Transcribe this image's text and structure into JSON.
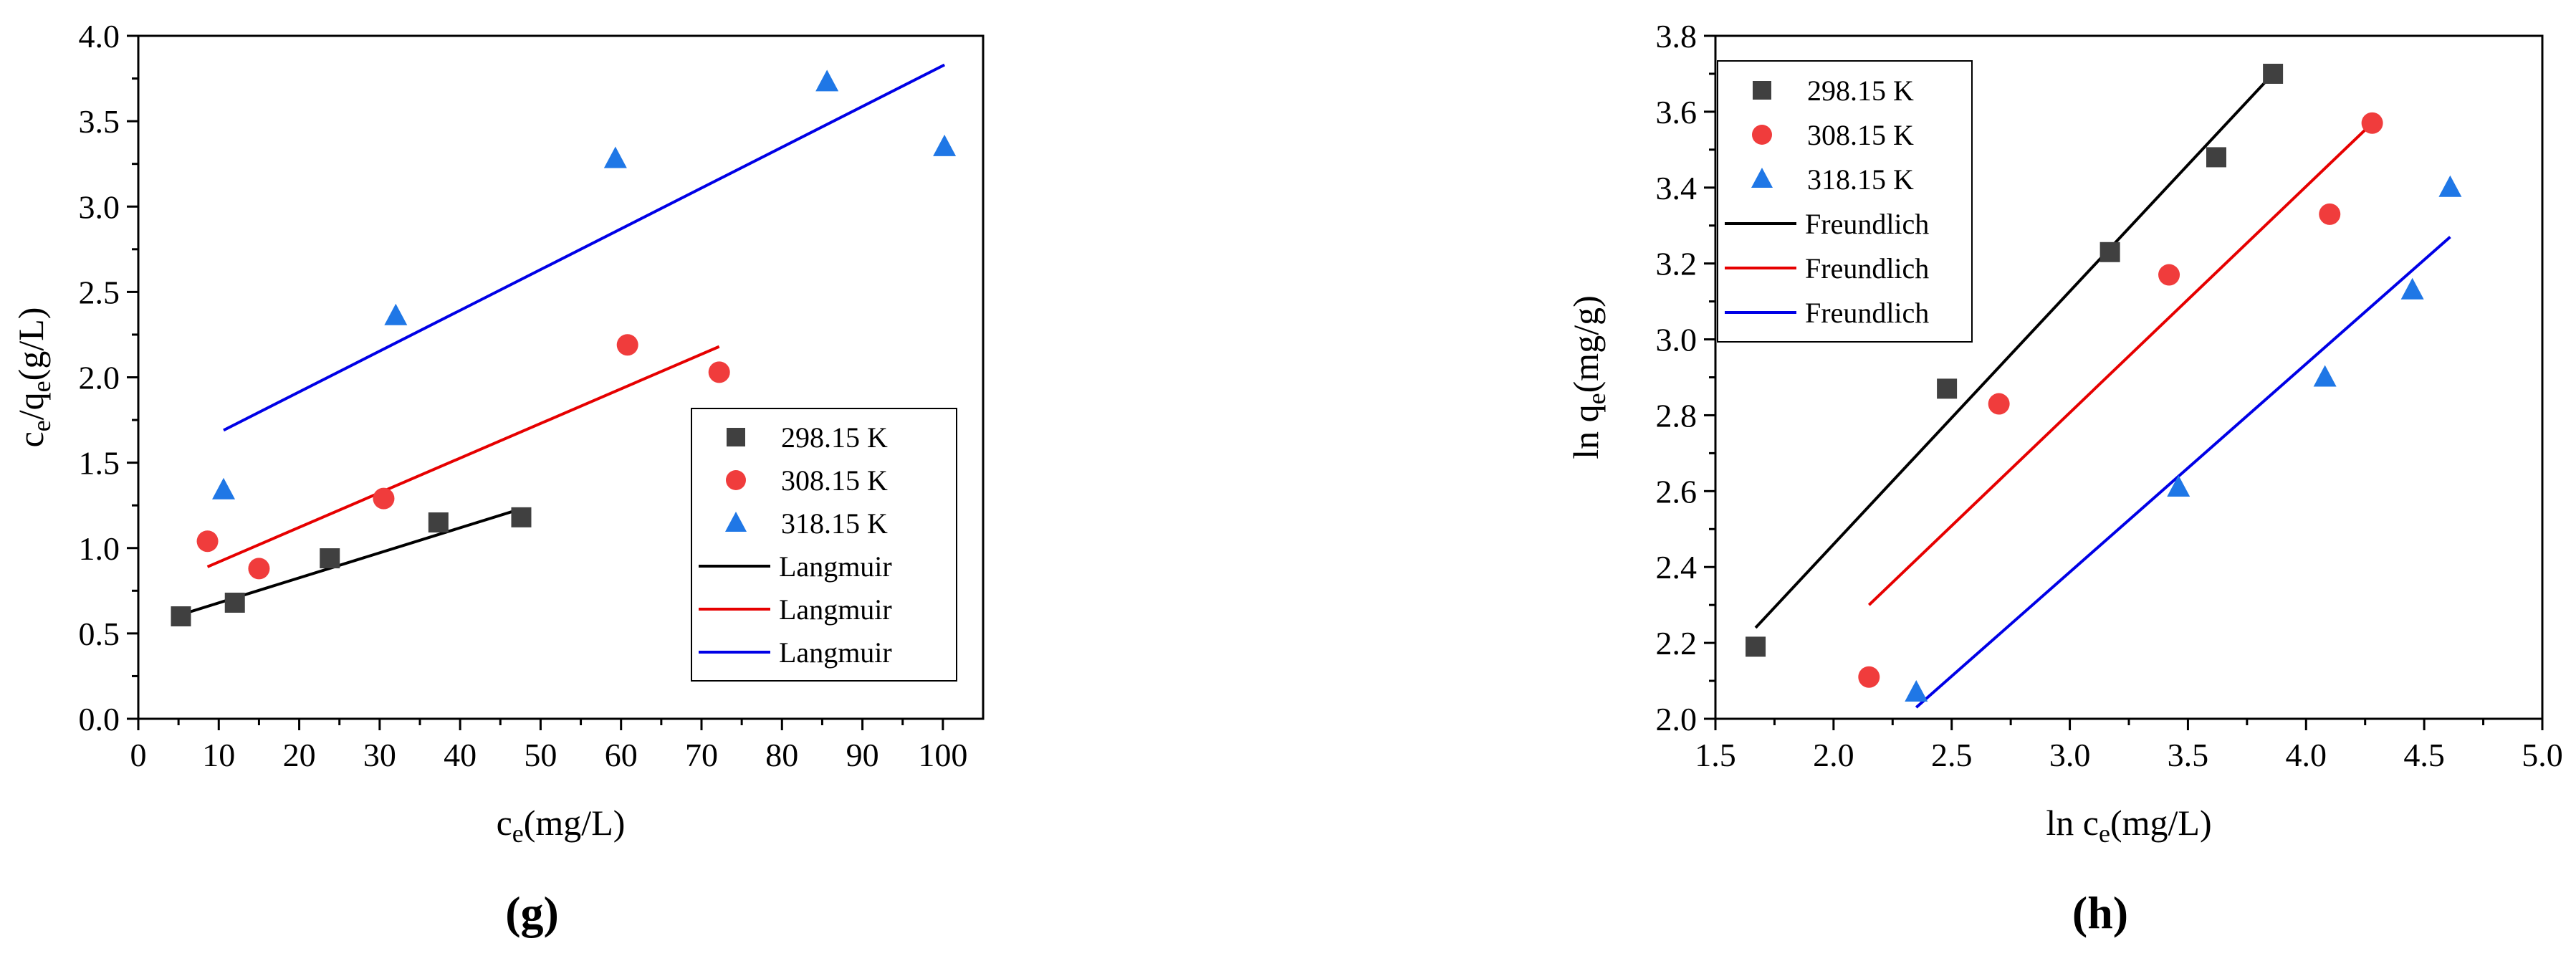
{
  "chart_data": [
    {
      "type": "scatter",
      "panel_label": "g",
      "xlabel_base": "c",
      "xlabel_sub": "e",
      "xlabel_rest": "(mg/L)",
      "ylabel_base": "c",
      "ylabel_sub1": "e",
      "ylabel_mid": "/q",
      "ylabel_sub2": "e",
      "ylabel_rest": "(g/L)",
      "xlim": [
        0,
        105
      ],
      "ylim": [
        0,
        4.0
      ],
      "xticks": [
        0,
        10,
        20,
        30,
        40,
        50,
        60,
        70,
        80,
        90,
        100
      ],
      "yticks": [
        0.0,
        0.5,
        1.0,
        1.5,
        2.0,
        2.5,
        3.0,
        3.5,
        4.0
      ],
      "grid": false,
      "legend_position": "lower-right",
      "series": [
        {
          "name": "298.15 K",
          "marker": "square",
          "color": "#404040",
          "x": [
            5.3,
            12.0,
            23.8,
            37.3,
            47.6
          ],
          "y": [
            0.6,
            0.68,
            0.94,
            1.15,
            1.18
          ]
        },
        {
          "name": "308.15 K",
          "marker": "circle",
          "color": "#f03c3c",
          "x": [
            8.6,
            15.0,
            30.5,
            60.8,
            72.2
          ],
          "y": [
            1.04,
            0.88,
            1.29,
            2.19,
            2.03
          ]
        },
        {
          "name": "318.15 K",
          "marker": "triangle",
          "color": "#1f77e6",
          "x": [
            10.6,
            32.0,
            59.3,
            85.6,
            100.2
          ],
          "y": [
            1.34,
            2.36,
            3.28,
            3.73,
            3.35
          ]
        }
      ],
      "fits": [
        {
          "name": "Langmuir",
          "color": "#000000",
          "x": [
            5.3,
            47.6
          ],
          "y": [
            0.61,
            1.23
          ]
        },
        {
          "name": "Langmuir",
          "color": "#e60000",
          "x": [
            8.6,
            72.2
          ],
          "y": [
            0.89,
            2.18
          ]
        },
        {
          "name": "Langmuir",
          "color": "#0000e6",
          "x": [
            10.6,
            100.2
          ],
          "y": [
            1.69,
            3.83
          ]
        }
      ]
    },
    {
      "type": "scatter",
      "panel_label": "h",
      "xlabel_base": "ln c",
      "xlabel_sub": "e",
      "xlabel_rest": "(mg/L)",
      "ylabel_base": "ln q",
      "ylabel_sub1": "e",
      "ylabel_mid": "",
      "ylabel_sub2": "",
      "ylabel_rest": "(mg/g)",
      "xlim": [
        1.5,
        5.0
      ],
      "ylim": [
        2.0,
        3.8
      ],
      "xticks": [
        1.5,
        2.0,
        2.5,
        3.0,
        3.5,
        4.0,
        4.5,
        5.0
      ],
      "yticks": [
        2.0,
        2.2,
        2.4,
        2.6,
        2.8,
        3.0,
        3.2,
        3.4,
        3.6,
        3.8
      ],
      "grid": false,
      "legend_position": "top-left",
      "series": [
        {
          "name": "298.15 K",
          "marker": "square",
          "color": "#404040",
          "x": [
            1.67,
            2.48,
            3.17,
            3.62,
            3.86
          ],
          "y": [
            2.19,
            2.87,
            3.23,
            3.48,
            3.7
          ]
        },
        {
          "name": "308.15 K",
          "marker": "circle",
          "color": "#f03c3c",
          "x": [
            2.15,
            2.7,
            3.42,
            4.1,
            4.28
          ],
          "y": [
            2.11,
            2.83,
            3.17,
            3.33,
            3.57
          ]
        },
        {
          "name": "318.15 K",
          "marker": "triangle",
          "color": "#1f77e6",
          "x": [
            2.35,
            3.46,
            4.08,
            4.45,
            4.61
          ],
          "y": [
            2.07,
            2.61,
            2.9,
            3.13,
            3.4
          ]
        }
      ],
      "fits": [
        {
          "name": "Freundlich",
          "color": "#000000",
          "x": [
            1.67,
            3.86
          ],
          "y": [
            2.24,
            3.7
          ]
        },
        {
          "name": "Freundlich",
          "color": "#e60000",
          "x": [
            2.15,
            4.28
          ],
          "y": [
            2.3,
            3.57
          ]
        },
        {
          "name": "Freundlich",
          "color": "#0000e6",
          "x": [
            2.35,
            4.61
          ],
          "y": [
            2.03,
            3.27
          ]
        }
      ]
    }
  ]
}
